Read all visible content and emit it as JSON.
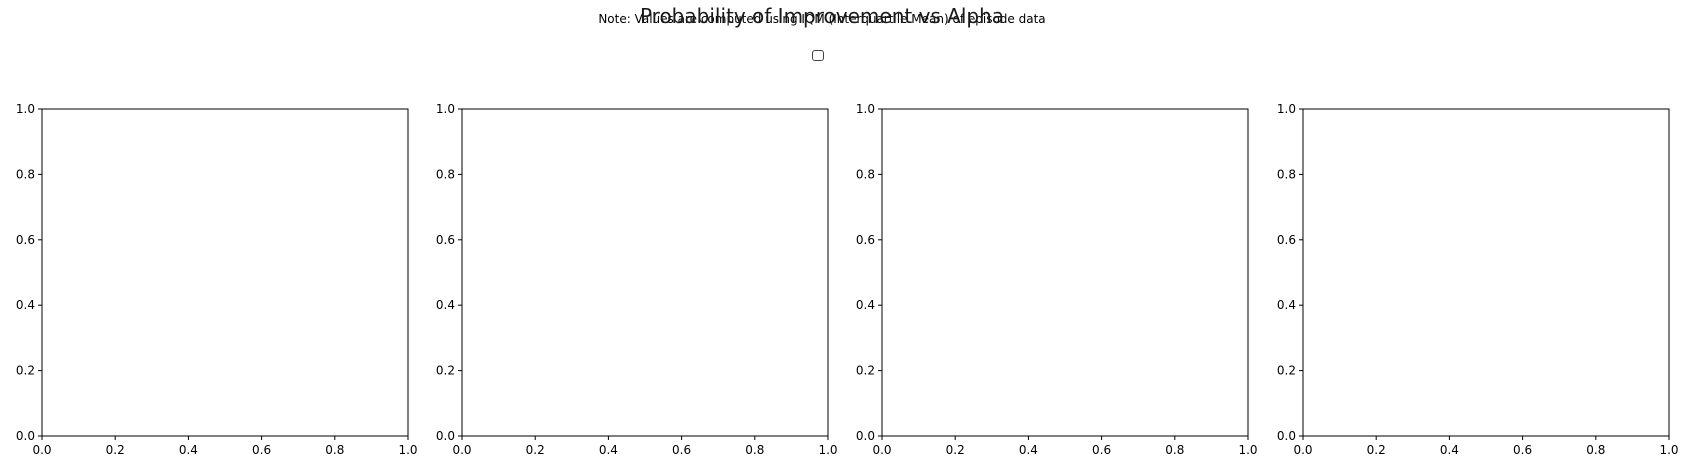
{
  "figure": {
    "title": "Probability of Improvement vs Alpha",
    "note": "Note: Values are computed using IQM (Interquartile Mean) of episode data"
  },
  "chart_data": [
    {
      "type": "line",
      "title": "",
      "xlabel": "",
      "ylabel": "",
      "xlim": [
        0.0,
        1.0
      ],
      "ylim": [
        0.0,
        1.0
      ],
      "xticks": [
        "0.0",
        "0.2",
        "0.4",
        "0.6",
        "0.8",
        "1.0"
      ],
      "yticks": [
        "0.0",
        "0.2",
        "0.4",
        "0.6",
        "0.8",
        "1.0"
      ],
      "series": [],
      "grid": false,
      "legend": "top-center"
    },
    {
      "type": "line",
      "title": "",
      "xlabel": "",
      "ylabel": "",
      "xlim": [
        0.0,
        1.0
      ],
      "ylim": [
        0.0,
        1.0
      ],
      "xticks": [
        "0.0",
        "0.2",
        "0.4",
        "0.6",
        "0.8",
        "1.0"
      ],
      "yticks": [
        "0.0",
        "0.2",
        "0.4",
        "0.6",
        "0.8",
        "1.0"
      ],
      "series": [],
      "grid": false
    },
    {
      "type": "line",
      "title": "",
      "xlabel": "",
      "ylabel": "",
      "xlim": [
        0.0,
        1.0
      ],
      "ylim": [
        0.0,
        1.0
      ],
      "xticks": [
        "0.0",
        "0.2",
        "0.4",
        "0.6",
        "0.8",
        "1.0"
      ],
      "yticks": [
        "0.0",
        "0.2",
        "0.4",
        "0.6",
        "0.8",
        "1.0"
      ],
      "series": [],
      "grid": false
    },
    {
      "type": "line",
      "title": "",
      "xlabel": "",
      "ylabel": "",
      "xlim": [
        0.0,
        1.0
      ],
      "ylim": [
        0.0,
        1.0
      ],
      "xticks": [
        "0.0",
        "0.2",
        "0.4",
        "0.6",
        "0.8",
        "1.0"
      ],
      "yticks": [
        "0.0",
        "0.2",
        "0.4",
        "0.6",
        "0.8",
        "1.0"
      ],
      "series": [],
      "grid": false
    }
  ]
}
